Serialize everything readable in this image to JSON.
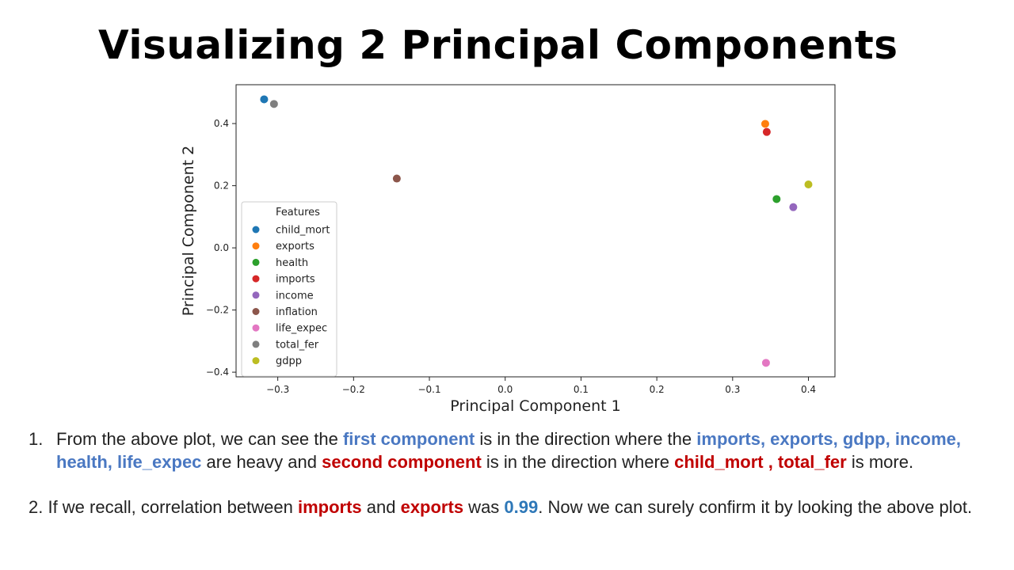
{
  "slide": {
    "title": "Visualizing 2 Principal Components"
  },
  "chart_data": {
    "type": "scatter",
    "xlabel": "Principal Component 1",
    "ylabel": "Principal Component 2",
    "xlim": [
      -0.355,
      0.435
    ],
    "ylim": [
      -0.415,
      0.525
    ],
    "xticks": [
      -0.3,
      -0.2,
      -0.1,
      0.0,
      0.1,
      0.2,
      0.3,
      0.4
    ],
    "xtick_labels": [
      "−0.3",
      "−0.2",
      "−0.1",
      "0.0",
      "0.1",
      "0.2",
      "0.3",
      "0.4"
    ],
    "yticks": [
      -0.4,
      -0.2,
      0.0,
      0.2,
      0.4
    ],
    "ytick_labels": [
      "−0.4",
      "−0.2",
      "0.0",
      "0.2",
      "0.4"
    ],
    "grid": false,
    "legend": {
      "title": "Features",
      "placement": "lower-left"
    },
    "points": [
      {
        "name": "child_mort",
        "x": -0.318,
        "y": 0.478,
        "color": "#1f77b4"
      },
      {
        "name": "exports",
        "x": 0.343,
        "y": 0.399,
        "color": "#ff7f0e"
      },
      {
        "name": "health",
        "x": 0.358,
        "y": 0.157,
        "color": "#2ca02c"
      },
      {
        "name": "imports",
        "x": 0.345,
        "y": 0.373,
        "color": "#d62728"
      },
      {
        "name": "income",
        "x": 0.38,
        "y": 0.131,
        "color": "#9467bd"
      },
      {
        "name": "inflation",
        "x": -0.143,
        "y": 0.223,
        "color": "#8c564b"
      },
      {
        "name": "life_expec",
        "x": 0.344,
        "y": -0.37,
        "color": "#e377c2"
      },
      {
        "name": "total_fer",
        "x": -0.305,
        "y": 0.463,
        "color": "#7f7f7f"
      },
      {
        "name": "gdpp",
        "x": 0.4,
        "y": 0.204,
        "color": "#bcbd22"
      }
    ]
  },
  "notes": {
    "item1": {
      "number": "1.",
      "t1": "From the above plot, we can see the ",
      "h1": "first component",
      "t2": " is in the direction where the ",
      "h2": "imports, exports, gdpp, income, health, life_expec",
      "t3": " are heavy and ",
      "h3": "second component",
      "t4": " is in the direction where ",
      "h4": "child_mort , total_fer",
      "t5": " is more."
    },
    "item2": {
      "t1": "2. If we recall, correlation between ",
      "h1": "imports",
      "t2": " and ",
      "h2": "exports",
      "t3": " was ",
      "h3": "0.99",
      "t4": ". Now we can surely confirm it by looking the above plot."
    }
  }
}
